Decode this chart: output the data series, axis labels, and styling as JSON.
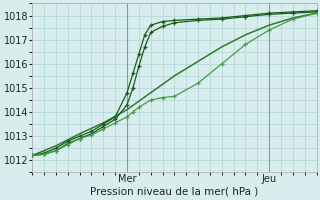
{
  "xlabel": "Pression niveau de la mer( hPa )",
  "ylim": [
    1011.5,
    1018.5
  ],
  "xlim": [
    0,
    48
  ],
  "yticks": [
    1012,
    1013,
    1014,
    1015,
    1016,
    1017,
    1018
  ],
  "day_labels": [
    "Mer",
    "Jeu"
  ],
  "day_positions": [
    16,
    40
  ],
  "background_color": "#d8eeee",
  "grid_color": "#b0d4d4",
  "line_color_dark": "#1a5c1a",
  "line_color_mid": "#2d7a2d",
  "line_color_light": "#4a9a4a",
  "s1_x": [
    0,
    2,
    4,
    6,
    8,
    10,
    12,
    14,
    16,
    17,
    18,
    19,
    20,
    22,
    24,
    28,
    32,
    36,
    40,
    44,
    48
  ],
  "s1_y": [
    1012.2,
    1012.3,
    1012.5,
    1012.8,
    1013.0,
    1013.2,
    1013.5,
    1013.8,
    1014.8,
    1015.6,
    1016.4,
    1017.2,
    1017.6,
    1017.75,
    1017.8,
    1017.85,
    1017.9,
    1018.0,
    1018.1,
    1018.15,
    1018.2
  ],
  "s2_x": [
    0,
    2,
    4,
    6,
    8,
    10,
    12,
    14,
    16,
    17,
    18,
    19,
    20,
    22,
    24,
    28,
    32,
    36,
    40,
    44,
    48
  ],
  "s2_y": [
    1012.2,
    1012.25,
    1012.4,
    1012.7,
    1012.9,
    1013.1,
    1013.4,
    1013.7,
    1014.3,
    1015.0,
    1015.9,
    1016.7,
    1017.3,
    1017.55,
    1017.7,
    1017.8,
    1017.85,
    1017.95,
    1018.05,
    1018.1,
    1018.15
  ],
  "s3_x": [
    0,
    4,
    8,
    12,
    16,
    20,
    24,
    28,
    32,
    36,
    40,
    44,
    48
  ],
  "s3_y": [
    1012.2,
    1012.6,
    1013.1,
    1013.55,
    1014.1,
    1014.8,
    1015.5,
    1016.1,
    1016.7,
    1017.2,
    1017.6,
    1017.9,
    1018.1
  ],
  "s4_x": [
    0,
    2,
    4,
    6,
    8,
    10,
    12,
    14,
    16,
    17,
    18,
    20,
    22,
    24,
    28,
    32,
    36,
    40,
    44,
    48
  ],
  "s4_y": [
    1012.2,
    1012.25,
    1012.4,
    1012.65,
    1012.9,
    1013.05,
    1013.3,
    1013.55,
    1013.8,
    1014.0,
    1014.2,
    1014.5,
    1014.6,
    1014.65,
    1015.2,
    1016.0,
    1016.8,
    1017.4,
    1017.85,
    1018.1
  ]
}
